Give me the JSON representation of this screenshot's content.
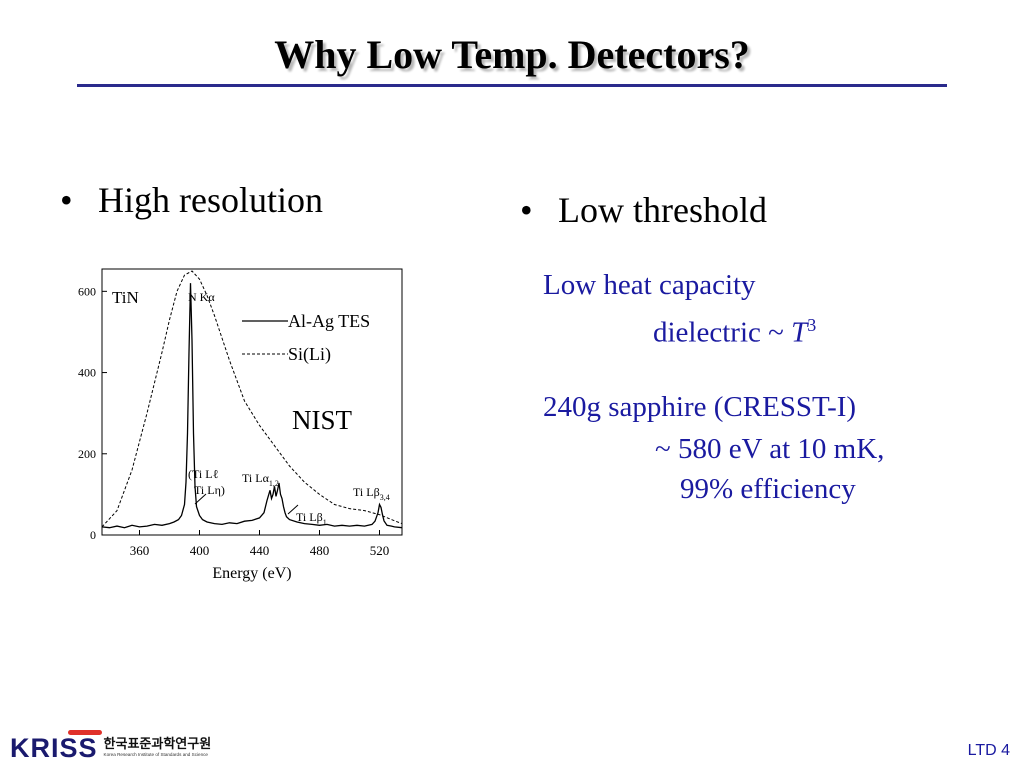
{
  "slide": {
    "title": "Why Low Temp. Detectors?",
    "page_label": "LTD 4",
    "accent_color": "#1a1aa0"
  },
  "left": {
    "bullet": "High resolution",
    "bullet_symbol": "•"
  },
  "right": {
    "bullet": "Low threshold",
    "bullet_symbol": "•",
    "lines": {
      "heat_capacity": "Low heat capacity",
      "dielectric": "dielectric  ~ ",
      "t_symbol": "T",
      "t_exponent": "3",
      "sapphire": "240g sapphire (CRESST-I)",
      "resolution": "~ 580 eV at 10 mK,",
      "efficiency": "99% efficiency"
    }
  },
  "logo": {
    "wordmark_part1": "KRI",
    "wordmark_part2": "SS",
    "korean_name": "한국표준과학연구원",
    "english_name": "Korea Research Institute of Standards and Science"
  },
  "chart_data": {
    "type": "line",
    "xlabel": "Energy (eV)",
    "ylabel": "",
    "xlim": [
      335,
      535
    ],
    "ylim": [
      0,
      655
    ],
    "x_ticks": [
      360,
      400,
      440,
      480,
      520
    ],
    "y_ticks": [
      0,
      200,
      400,
      600
    ],
    "grid": false,
    "labels": {
      "material": "TiN",
      "institution": "NIST",
      "legend_al": "Al-Ag TES",
      "legend_si": "Si(Li)",
      "nka_main": "N Kα",
      "til_line1": "(Ti Lℓ",
      "til_line2": "Ti Lη)",
      "tila_main": "Ti Lα",
      "tila_sub": "1,2",
      "tilb1_main": "Ti Lβ",
      "tilb1_sub": "1",
      "tilb34_main": "Ti Lβ",
      "tilb34_sub": "3,4"
    },
    "legend_placement": "top-right",
    "series": [
      {
        "name": "Al-Ag TES",
        "style": "solid",
        "x": [
          335,
          340,
          345,
          350,
          355,
          360,
          365,
          370,
          375,
          380,
          383,
          386,
          388,
          390,
          391,
          392,
          393,
          394,
          395,
          396,
          397,
          398,
          400,
          402,
          405,
          410,
          415,
          420,
          425,
          430,
          435,
          440,
          443,
          445,
          447,
          448,
          449,
          450,
          451,
          452,
          453,
          454,
          455,
          456,
          457,
          458,
          460,
          465,
          470,
          475,
          480,
          485,
          490,
          495,
          500,
          505,
          510,
          515,
          517,
          519,
          520,
          521,
          522,
          523,
          525,
          528,
          530,
          535
        ],
        "y": [
          20,
          18,
          22,
          18,
          24,
          20,
          22,
          26,
          24,
          28,
          32,
          38,
          48,
          75,
          130,
          250,
          450,
          620,
          480,
          250,
          120,
          70,
          48,
          38,
          32,
          28,
          26,
          30,
          28,
          34,
          36,
          42,
          55,
          85,
          110,
          90,
          100,
          120,
          95,
          110,
          128,
          100,
          90,
          70,
          55,
          45,
          38,
          32,
          28,
          26,
          24,
          26,
          22,
          24,
          22,
          24,
          22,
          26,
          34,
          55,
          75,
          68,
          50,
          35,
          24,
          22,
          20,
          18
        ]
      },
      {
        "name": "Si(Li)",
        "style": "dashed",
        "x": [
          335,
          345,
          355,
          365,
          375,
          380,
          385,
          390,
          395,
          400,
          405,
          410,
          420,
          430,
          440,
          450,
          460,
          470,
          480,
          490,
          500,
          510,
          520,
          530,
          535
        ],
        "y": [
          20,
          60,
          160,
          300,
          450,
          530,
          600,
          640,
          650,
          630,
          590,
          540,
          430,
          330,
          270,
          220,
          170,
          130,
          100,
          75,
          65,
          60,
          50,
          35,
          28
        ]
      }
    ]
  }
}
